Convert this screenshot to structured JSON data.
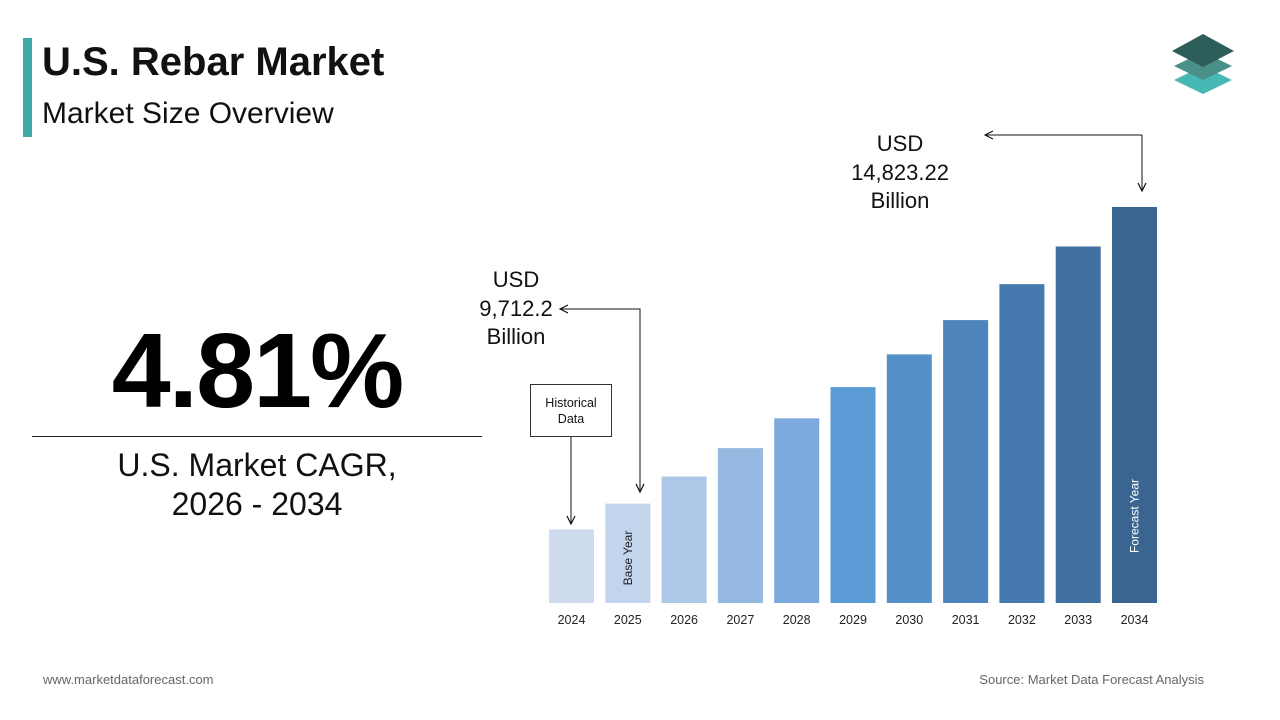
{
  "header": {
    "title": "U.S. Rebar Market",
    "subtitle": "Market Size Overview"
  },
  "colors": {
    "accent": "#3fa7a4",
    "logo_top": "#2e5e5a",
    "logo_mid": "#4a8f88",
    "logo_bottom": "#48b8b5"
  },
  "logo": {
    "icon": "layered-stack-logo"
  },
  "cagr": {
    "value": "4.81%",
    "label_line1": "U.S. Market CAGR,",
    "label_line2": "2026 - 2034"
  },
  "callouts": {
    "base": {
      "line1": "USD",
      "line2": "9,712.2",
      "line3": "Billion"
    },
    "forecast": {
      "line1": "USD",
      "line2": "14,823.22",
      "line3": "Billion"
    }
  },
  "historical_box": {
    "line1": "Historical",
    "line2": "Data"
  },
  "chart_data": {
    "type": "bar",
    "categories": [
      "2024",
      "2025",
      "2026",
      "2027",
      "2028",
      "2029",
      "2030",
      "2031",
      "2032",
      "2033",
      "2034"
    ],
    "values": [
      9267.7,
      9712.2,
      10179.4,
      10669.0,
      11182.2,
      11720.1,
      12283.8,
      12874.7,
      13494.0,
      14143.1,
      14823.22
    ],
    "colors": [
      "#cfdcef",
      "#c3d5ed",
      "#adc7e7",
      "#96b9e2",
      "#7ea9de",
      "#5b9bd5",
      "#5590c8",
      "#4d84bb",
      "#4679ad",
      "#40709f",
      "#3a6590"
    ],
    "bar_annotations": {
      "2025": "Base Year",
      "2034": "Forecast Year"
    },
    "ylim": [
      8000,
      15300
    ]
  },
  "footer": {
    "website": "www.marketdataforecast.com",
    "source": "Source: Market Data Forecast Analysis"
  }
}
